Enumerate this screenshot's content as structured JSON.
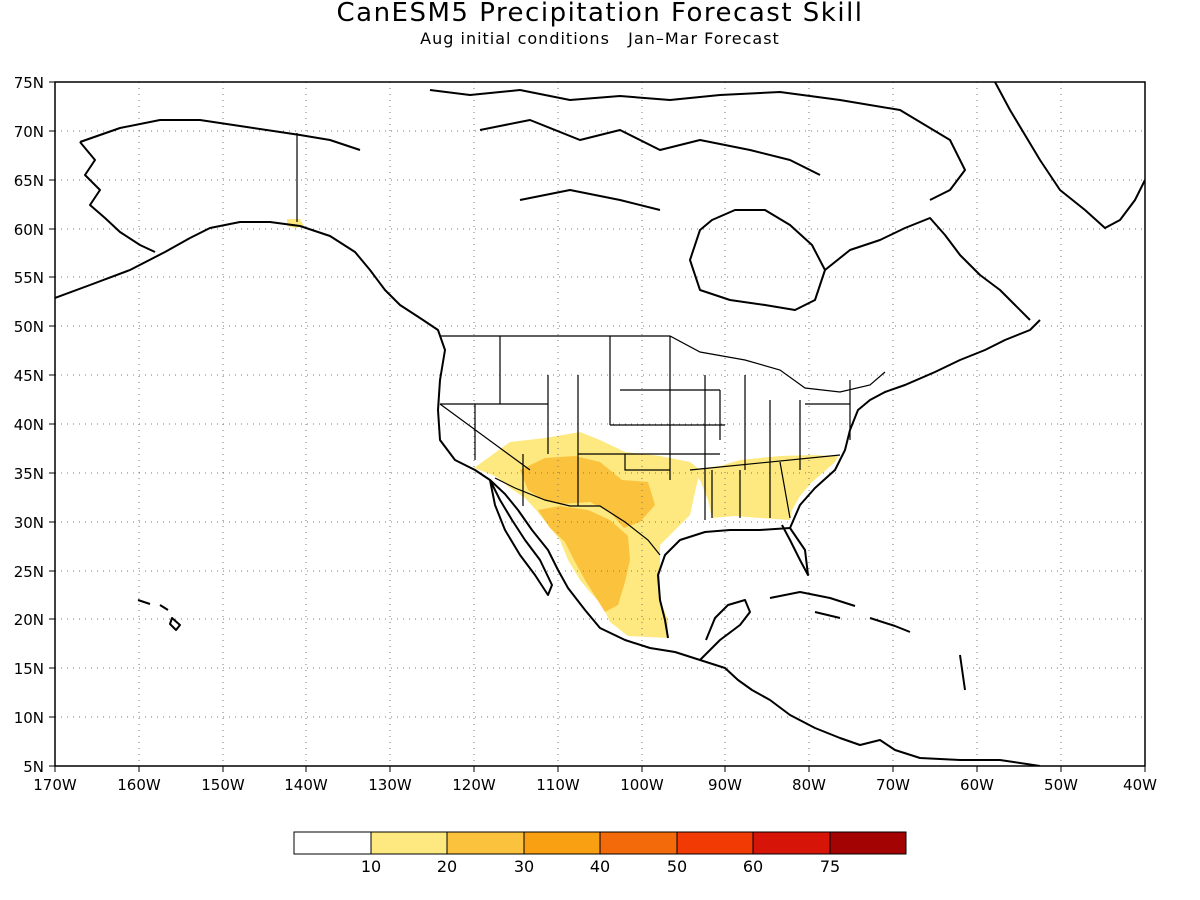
{
  "title": "CanESM5 Precipitation Forecast Skill",
  "subtitle_left": "Aug initial conditions",
  "subtitle_right": "Jan–Mar Forecast",
  "map": {
    "lon_range": [
      -170,
      -40
    ],
    "lat_range": [
      5,
      75
    ],
    "lat_ticks": [
      "75N",
      "70N",
      "65N",
      "60N",
      "55N",
      "50N",
      "45N",
      "40N",
      "35N",
      "30N",
      "25N",
      "20N",
      "15N",
      "10N",
      "5N"
    ],
    "lon_ticks": [
      "170W",
      "160W",
      "150W",
      "140W",
      "130W",
      "120W",
      "110W",
      "100W",
      "90W",
      "80W",
      "70W",
      "60W",
      "50W",
      "40W"
    ],
    "gridlines": "dotted"
  },
  "legend": {
    "colors": [
      "#ffffff",
      "#fde97f",
      "#fbc23e",
      "#f99f12",
      "#f36a0b",
      "#f23a05",
      "#d61408",
      "#a30303"
    ],
    "labels": [
      "10",
      "20",
      "30",
      "40",
      "50",
      "60",
      "75"
    ]
  },
  "skill_regions": [
    {
      "name": "southwest-us-mexico",
      "level": "10-20"
    },
    {
      "name": "southeast-us",
      "level": "10-20"
    },
    {
      "name": "arizona-new-mexico-core",
      "level": "20-30"
    },
    {
      "name": "northern-mexico-core",
      "level": "20-30"
    },
    {
      "name": "alaska-coast",
      "level": "10-20"
    }
  ]
}
